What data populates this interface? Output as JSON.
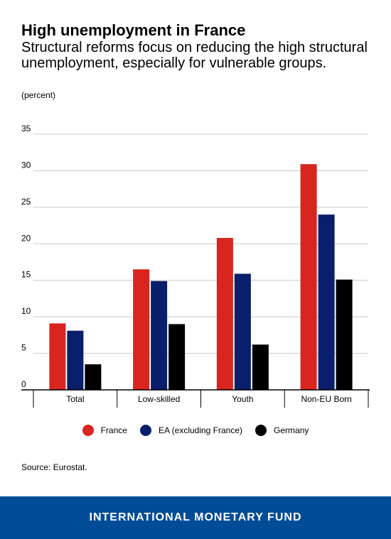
{
  "header": {
    "title": "High unemployment in France",
    "subtitle": "Structural reforms focus on reducing the high structural unemployment, especially for vulnerable groups.",
    "unit": "(percent)"
  },
  "colors": {
    "France": "#d8251d",
    "EA (excluding France)": "#0a1f6b",
    "Germany": "#000000"
  },
  "chart_data": {
    "type": "bar",
    "categories": [
      "Total",
      "Low-skilled",
      "Youth",
      "Non-EU Born"
    ],
    "series": [
      {
        "name": "France",
        "values": [
          9.1,
          16.5,
          20.8,
          30.9
        ]
      },
      {
        "name": "EA (excluding France)",
        "values": [
          8.1,
          14.9,
          15.9,
          24.0
        ]
      },
      {
        "name": "Germany",
        "values": [
          3.5,
          9.0,
          6.2,
          15.1
        ]
      }
    ],
    "yticks": [
      0,
      5,
      10,
      15,
      20,
      25,
      30,
      35
    ],
    "ylim": [
      0,
      35
    ],
    "grid": true,
    "legend": "bottom"
  },
  "legend": {
    "items": [
      {
        "label": "France",
        "color": "#d8251d"
      },
      {
        "label": "EA (excluding France)",
        "color": "#0a1f6b"
      },
      {
        "label": "Germany",
        "color": "#000000"
      }
    ]
  },
  "source": "Source: Eurostat.",
  "footer": {
    "org": "INTERNATIONAL MONETARY FUND"
  }
}
